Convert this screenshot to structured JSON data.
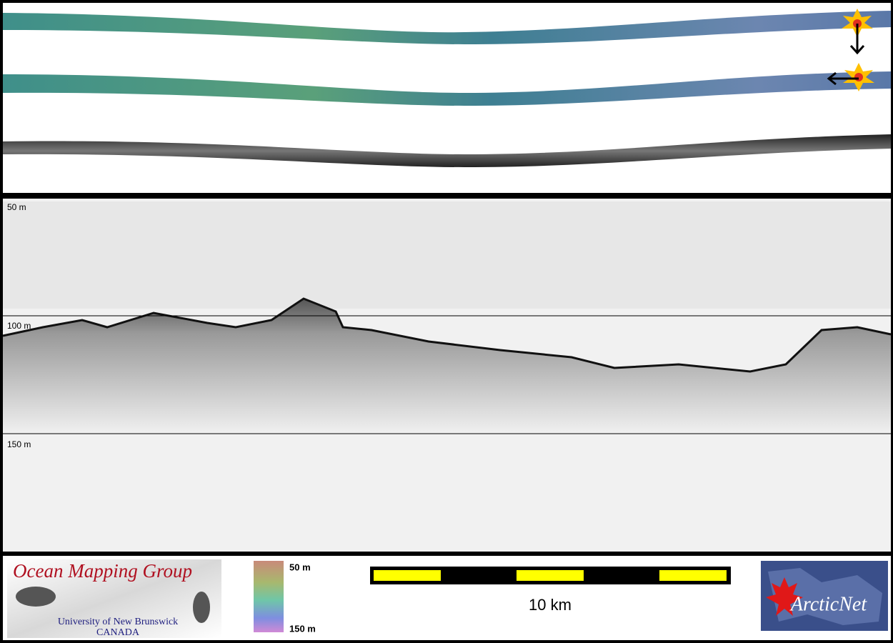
{
  "swath_panel": {
    "depth_labels": [
      "50 m",
      "100 m",
      "150 m"
    ]
  },
  "color_legend": {
    "top": "50 m",
    "bottom": "150 m"
  },
  "scale_bar": {
    "label": "10 km"
  },
  "logos": {
    "omg_title": "Ocean Mapping Group",
    "omg_university": "University of New Brunswick",
    "omg_country": "CANADA",
    "arcticnet": "ArcticNet"
  }
}
